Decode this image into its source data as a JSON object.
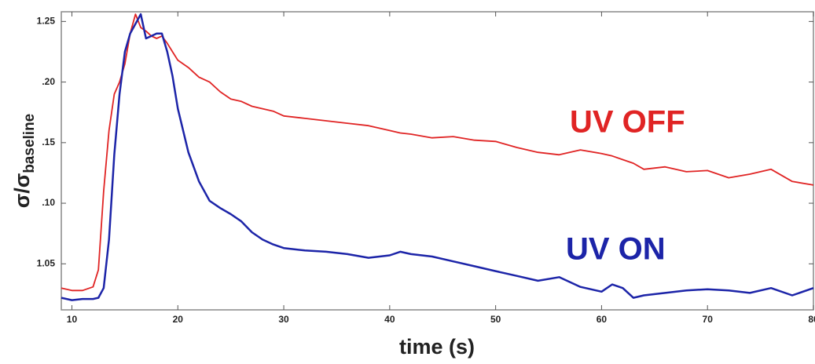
{
  "chart_data": {
    "type": "line",
    "xlabel": "time (s)",
    "ylabel": {
      "main": "σ/σ",
      "sub": "baseline"
    },
    "xlim": [
      9,
      80
    ],
    "ylim": [
      1.012,
      1.258
    ],
    "xticks": [
      10,
      20,
      30,
      40,
      50,
      60,
      70,
      80
    ],
    "yticks": [
      1.05,
      {
        "value": 1.1,
        "label": ".10"
      },
      {
        "value": 1.15,
        "label": ".15"
      },
      {
        "value": 1.2,
        "label": ".20"
      },
      1.25
    ],
    "grid": false,
    "x": [
      9,
      10,
      11,
      12,
      12.5,
      13,
      13.5,
      14,
      14.5,
      15,
      15.5,
      16,
      16.5,
      17,
      17.5,
      18,
      18.5,
      19,
      19.5,
      20,
      21,
      22,
      23,
      24,
      25,
      26,
      27,
      28,
      29,
      30,
      32,
      34,
      36,
      38,
      40,
      41,
      42,
      44,
      46,
      48,
      50,
      52,
      54,
      56,
      58,
      60,
      61,
      62,
      63,
      64,
      66,
      68,
      70,
      72,
      74,
      76,
      78,
      80
    ],
    "series": [
      {
        "name": "UV OFF",
        "color": "#e02424",
        "values": [
          1.03,
          1.028,
          1.028,
          1.031,
          1.045,
          1.11,
          1.16,
          1.19,
          1.2,
          1.215,
          1.24,
          1.256,
          1.245,
          1.242,
          1.238,
          1.236,
          1.238,
          1.232,
          1.225,
          1.218,
          1.212,
          1.204,
          1.2,
          1.192,
          1.186,
          1.184,
          1.18,
          1.178,
          1.176,
          1.172,
          1.17,
          1.168,
          1.166,
          1.164,
          1.16,
          1.158,
          1.157,
          1.154,
          1.155,
          1.152,
          1.151,
          1.146,
          1.142,
          1.14,
          1.144,
          1.141,
          1.139,
          1.136,
          1.133,
          1.128,
          1.13,
          1.126,
          1.127,
          1.121,
          1.124,
          1.128,
          1.118,
          1.115
        ]
      },
      {
        "name": "UV ON",
        "color": "#1c24a8",
        "values": [
          1.022,
          1.02,
          1.021,
          1.021,
          1.022,
          1.03,
          1.07,
          1.14,
          1.19,
          1.225,
          1.24,
          1.248,
          1.256,
          1.236,
          1.238,
          1.24,
          1.24,
          1.225,
          1.205,
          1.178,
          1.142,
          1.118,
          1.102,
          1.096,
          1.091,
          1.085,
          1.076,
          1.07,
          1.066,
          1.063,
          1.061,
          1.06,
          1.058,
          1.055,
          1.057,
          1.06,
          1.058,
          1.056,
          1.052,
          1.048,
          1.044,
          1.04,
          1.036,
          1.039,
          1.031,
          1.027,
          1.033,
          1.03,
          1.022,
          1.024,
          1.026,
          1.028,
          1.029,
          1.028,
          1.026,
          1.03,
          1.024,
          1.03
        ]
      }
    ]
  }
}
